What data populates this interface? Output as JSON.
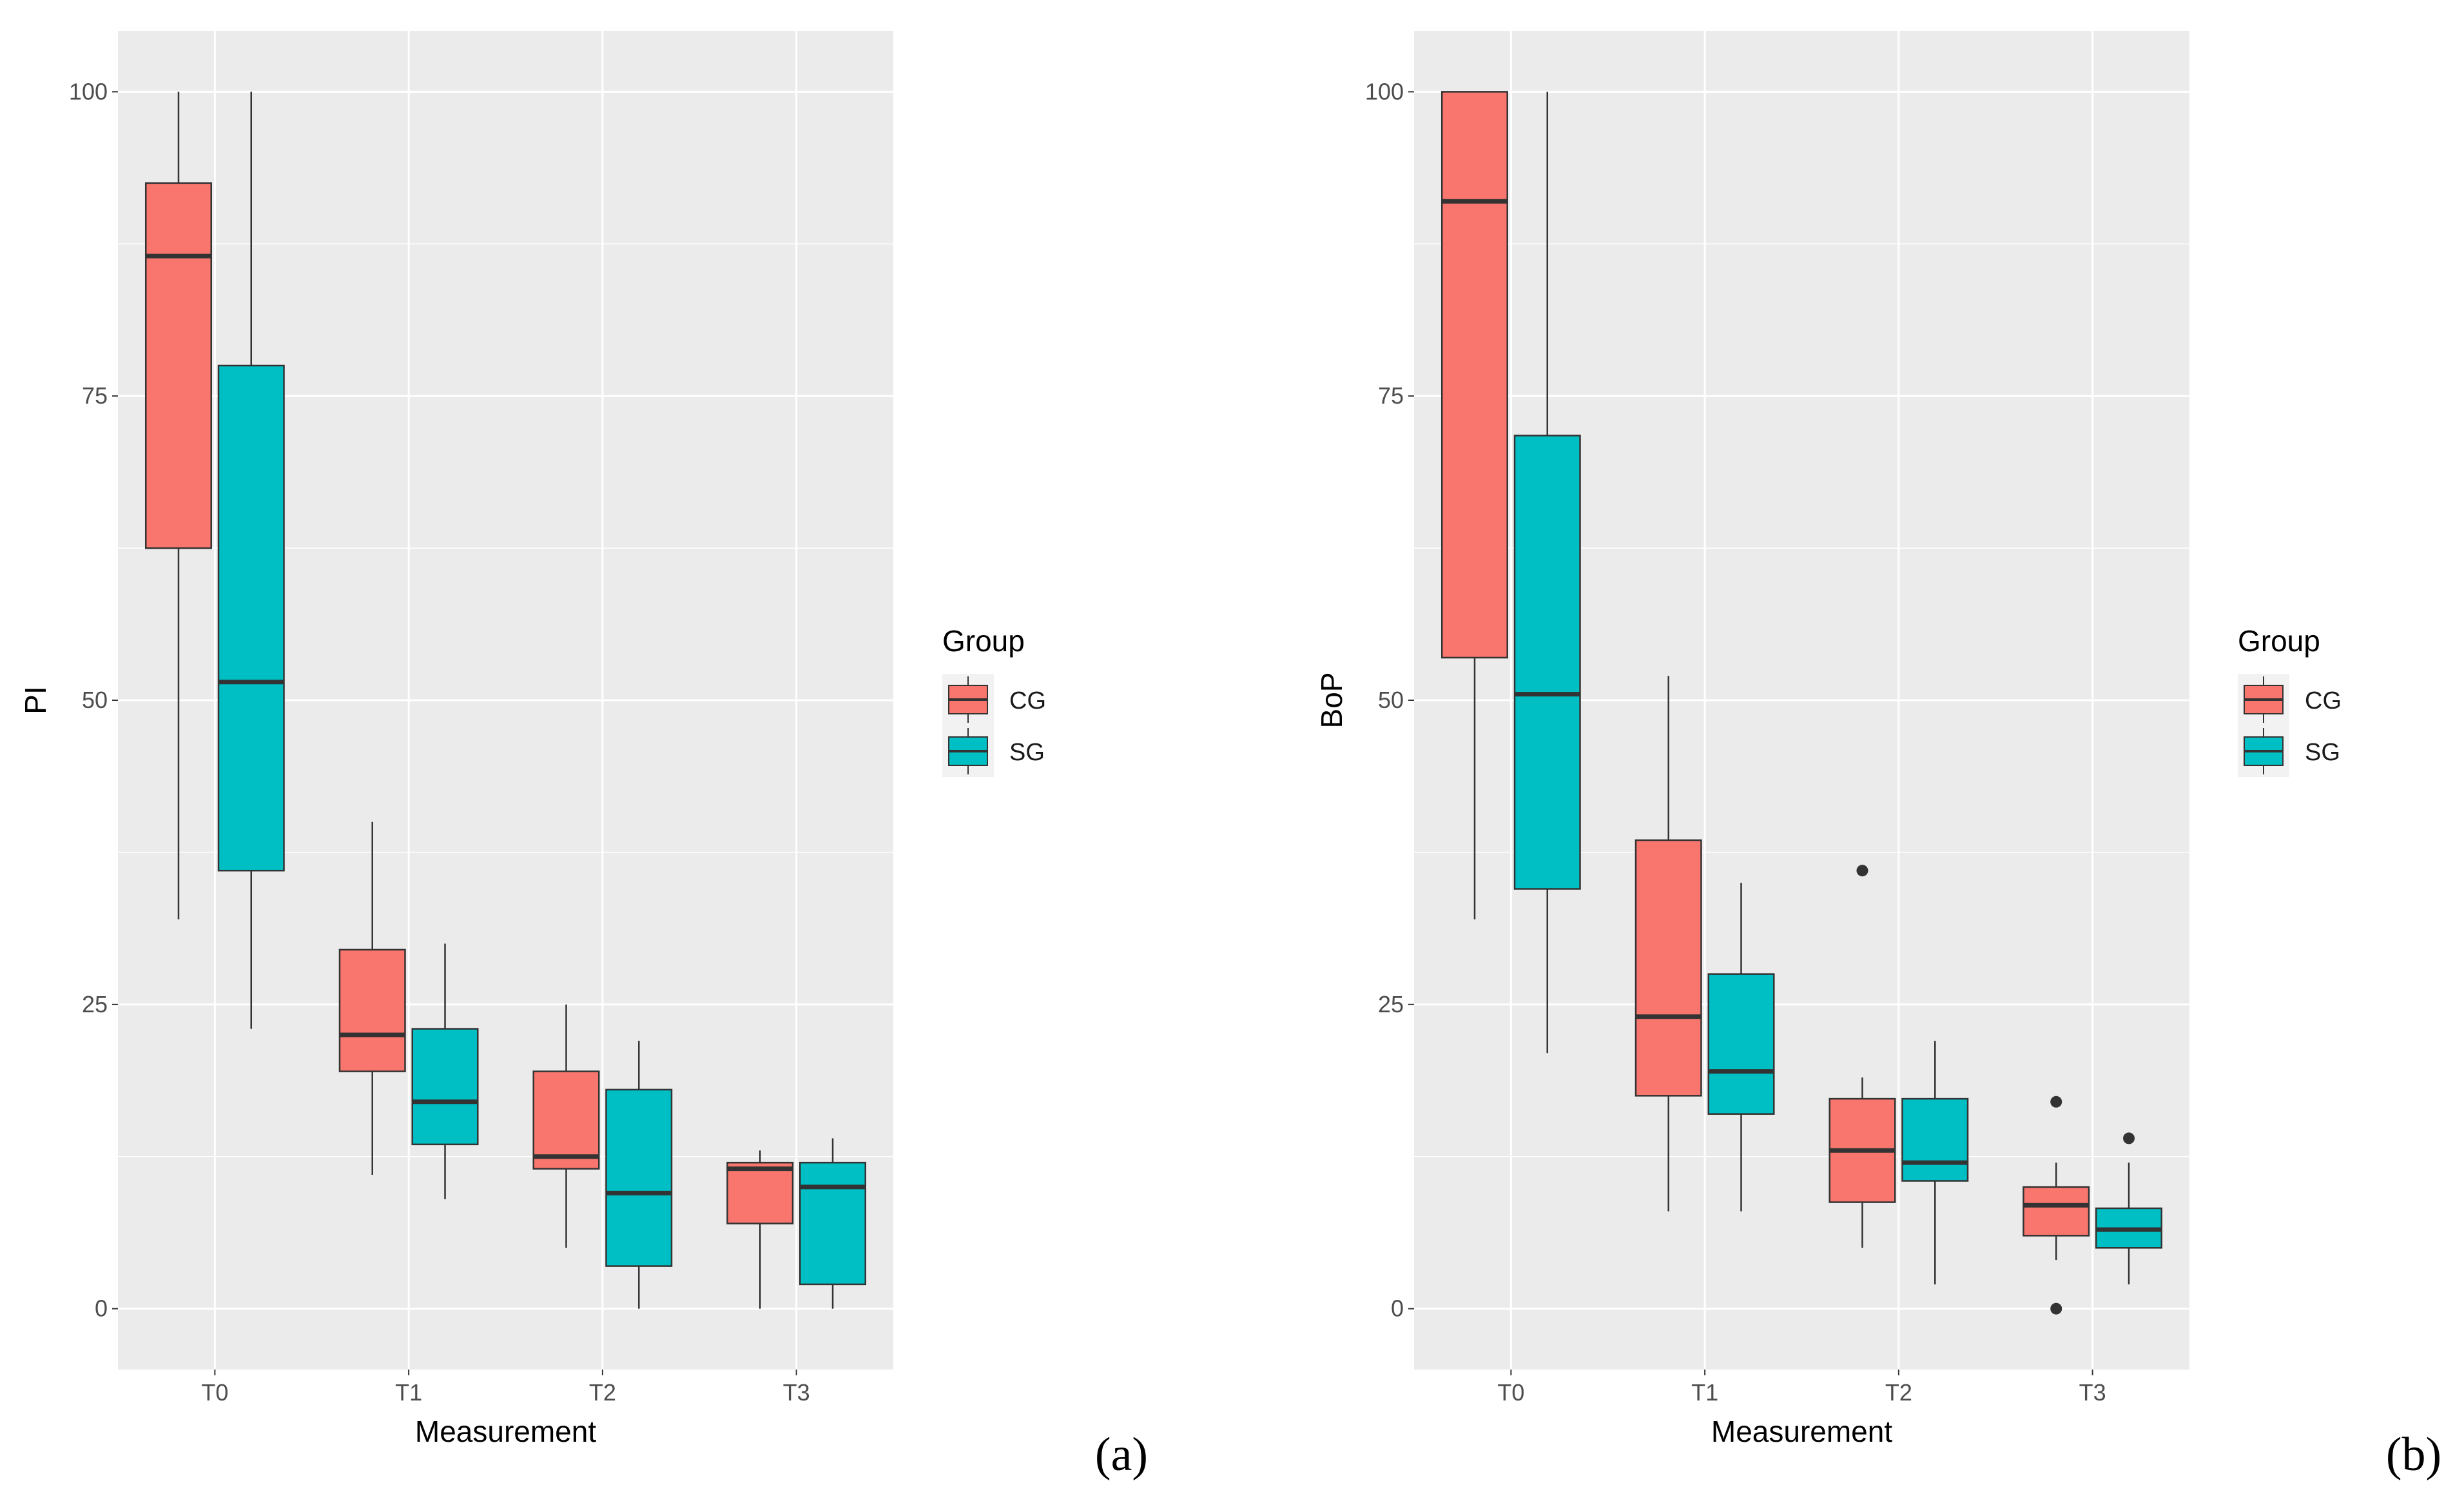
{
  "chart_data": [
    {
      "type": "boxplot",
      "panel_label": "(a)",
      "xlabel": "Measurement",
      "ylabel": "PI",
      "ylim": [
        -5,
        105
      ],
      "yticks": [
        0,
        25,
        50,
        75,
        100
      ],
      "categories": [
        "T0",
        "T1",
        "T2",
        "T3"
      ],
      "legend": {
        "title": "Group",
        "position": "right",
        "entries": [
          "CG",
          "SG"
        ]
      },
      "series": [
        {
          "name": "CG",
          "color": "#F8766D",
          "boxes": [
            {
              "lower_whisker": 32,
              "q1": 62.5,
              "median": 86.5,
              "q3": 92.5,
              "upper_whisker": 100,
              "outliers": []
            },
            {
              "lower_whisker": 11,
              "q1": 19.5,
              "median": 22.5,
              "q3": 29.5,
              "upper_whisker": 40,
              "outliers": []
            },
            {
              "lower_whisker": 5,
              "q1": 11.5,
              "median": 12.5,
              "q3": 19.5,
              "upper_whisker": 25,
              "outliers": []
            },
            {
              "lower_whisker": 0,
              "q1": 7,
              "median": 11.5,
              "q3": 12,
              "upper_whisker": 13,
              "outliers": []
            }
          ]
        },
        {
          "name": "SG",
          "color": "#00BFC4",
          "boxes": [
            {
              "lower_whisker": 23,
              "q1": 36,
              "median": 51.5,
              "q3": 77.5,
              "upper_whisker": 100,
              "outliers": []
            },
            {
              "lower_whisker": 9,
              "q1": 13.5,
              "median": 17,
              "q3": 23,
              "upper_whisker": 30,
              "outliers": []
            },
            {
              "lower_whisker": 0,
              "q1": 3.5,
              "median": 9.5,
              "q3": 18,
              "upper_whisker": 22,
              "outliers": []
            },
            {
              "lower_whisker": 0,
              "q1": 2,
              "median": 10,
              "q3": 12,
              "upper_whisker": 14,
              "outliers": []
            }
          ]
        }
      ]
    },
    {
      "type": "boxplot",
      "panel_label": "(b)",
      "xlabel": "Measurement",
      "ylabel": "BoP",
      "ylim": [
        -5,
        105
      ],
      "yticks": [
        0,
        25,
        50,
        75,
        100
      ],
      "categories": [
        "T0",
        "T1",
        "T2",
        "T3"
      ],
      "legend": {
        "title": "Group",
        "position": "right",
        "entries": [
          "CG",
          "SG"
        ]
      },
      "series": [
        {
          "name": "CG",
          "color": "#F8766D",
          "boxes": [
            {
              "lower_whisker": 32,
              "q1": 53.5,
              "median": 91,
              "q3": 100,
              "upper_whisker": 100,
              "outliers": []
            },
            {
              "lower_whisker": 8,
              "q1": 17.5,
              "median": 24,
              "q3": 38.5,
              "upper_whisker": 52,
              "outliers": []
            },
            {
              "lower_whisker": 5,
              "q1": 8.75,
              "median": 13,
              "q3": 17.25,
              "upper_whisker": 19,
              "outliers": [
                36
              ]
            },
            {
              "lower_whisker": 4,
              "q1": 6,
              "median": 8.5,
              "q3": 10,
              "upper_whisker": 12,
              "outliers": [
                17,
                0
              ]
            }
          ]
        },
        {
          "name": "SG",
          "color": "#00BFC4",
          "boxes": [
            {
              "lower_whisker": 21,
              "q1": 34.5,
              "median": 50.5,
              "q3": 71.75,
              "upper_whisker": 100,
              "outliers": []
            },
            {
              "lower_whisker": 8,
              "q1": 16,
              "median": 19.5,
              "q3": 27.5,
              "upper_whisker": 35,
              "outliers": []
            },
            {
              "lower_whisker": 2,
              "q1": 10.5,
              "median": 12,
              "q3": 17.25,
              "upper_whisker": 22,
              "outliers": []
            },
            {
              "lower_whisker": 2,
              "q1": 5,
              "median": 6.5,
              "q3": 8.25,
              "upper_whisker": 12,
              "outliers": [
                14
              ]
            }
          ]
        }
      ]
    }
  ]
}
